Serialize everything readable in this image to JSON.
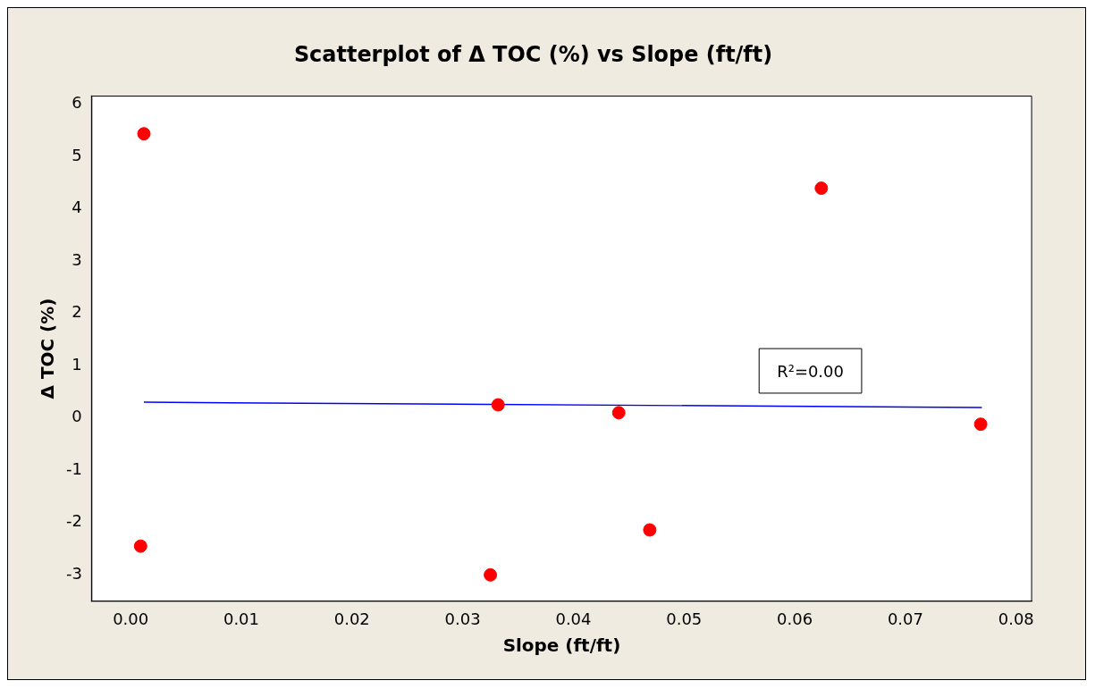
{
  "chart_data": {
    "type": "scatter",
    "title": "Scatterplot of Δ TOC (%) vs Slope (ft/ft)",
    "xlabel": "Slope (ft/ft)",
    "ylabel": "Δ TOC (%)",
    "series": [
      {
        "color": "#ff0000",
        "x": [
          0.0012,
          0.0624,
          0.0332,
          0.0441,
          0.0768,
          0.0009,
          0.0325,
          0.0469
        ],
        "values": [
          5.43,
          4.39,
          0.25,
          0.1,
          -0.12,
          -2.45,
          -3.0,
          -2.14
        ],
        "marker": "circle"
      },
      {
        "type": "line",
        "color": "#0000ff",
        "x": [
          0.0012,
          0.0769
        ],
        "values": [
          0.3,
          0.2
        ],
        "marker": "none"
      }
    ],
    "xlim": [
      -0.0035,
      0.0814
    ],
    "ylim": [
      -3.5,
      6.15
    ],
    "xticks": [
      {
        "value": 0,
        "label": "0.00"
      },
      {
        "value": 0.01,
        "label": "0.01"
      },
      {
        "value": 0.02,
        "label": "0.02"
      },
      {
        "value": 0.03,
        "label": "0.03"
      },
      {
        "value": 0.04,
        "label": "0.04"
      },
      {
        "value": 0.05,
        "label": "0.05"
      },
      {
        "value": 0.06,
        "label": "0.06"
      },
      {
        "value": 0.07,
        "label": "0.07"
      },
      {
        "value": 0.08,
        "label": "0.08"
      }
    ],
    "yticks": [
      -3,
      -2,
      -1,
      0,
      1,
      2,
      3,
      4,
      5,
      6
    ],
    "annotations": [
      "R²=0.00"
    ],
    "grid": false,
    "legend": false
  }
}
